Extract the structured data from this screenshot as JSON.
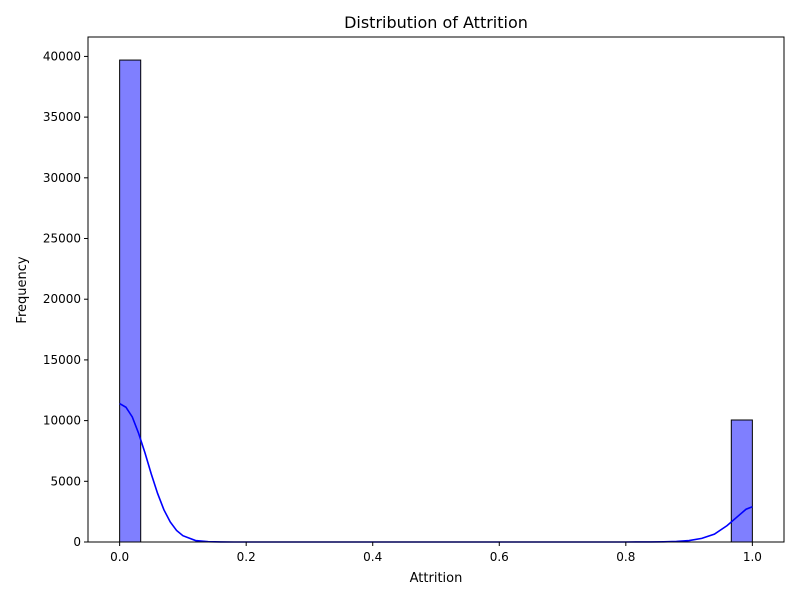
{
  "chart_data": {
    "type": "bar",
    "title": "Distribution of Attrition",
    "xlabel": "Attrition",
    "ylabel": "Frequency",
    "xlim": [
      -0.05,
      1.05
    ],
    "ylim": [
      0,
      41600
    ],
    "x_ticks": [
      0.0,
      0.2,
      0.4,
      0.6,
      0.8,
      1.0
    ],
    "x_tick_labels": [
      "0.0",
      "0.2",
      "0.4",
      "0.6",
      "0.8",
      "1.0"
    ],
    "y_ticks": [
      0,
      5000,
      10000,
      15000,
      20000,
      25000,
      30000,
      35000,
      40000
    ],
    "y_tick_labels": [
      "0",
      "5000",
      "10000",
      "15000",
      "20000",
      "25000",
      "30000",
      "35000",
      "40000"
    ],
    "bins": [
      {
        "x0": 0.0,
        "x1": 0.0333,
        "count": 39700
      },
      {
        "x0": 0.9667,
        "x1": 1.0,
        "count": 10050
      }
    ],
    "bar_fill": "#7f7fff",
    "bar_edge": "#000000",
    "kde": {
      "color": "#0000ff",
      "x": [
        0.0,
        0.01,
        0.02,
        0.03,
        0.04,
        0.05,
        0.06,
        0.07,
        0.08,
        0.09,
        0.1,
        0.12,
        0.14,
        0.16,
        0.18,
        0.2,
        0.3,
        0.4,
        0.5,
        0.6,
        0.7,
        0.8,
        0.84,
        0.86,
        0.88,
        0.9,
        0.92,
        0.94,
        0.96,
        0.98,
        0.99,
        1.0
      ],
      "y": [
        11400,
        11100,
        10300,
        8950,
        7350,
        5600,
        4000,
        2650,
        1650,
        950,
        520,
        120,
        25,
        5,
        0,
        0,
        0,
        0,
        0,
        0,
        0,
        0,
        5,
        15,
        45,
        120,
        300,
        650,
        1350,
        2250,
        2700,
        2900
      ]
    },
    "grid": false,
    "legend": "none"
  }
}
